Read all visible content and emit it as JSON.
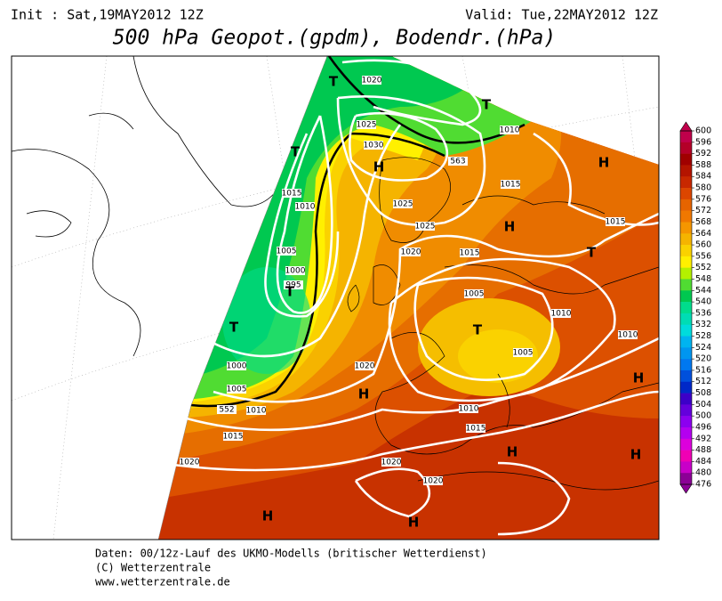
{
  "header": {
    "init": "Init : Sat,19MAY2012 12Z",
    "valid": "Valid: Tue,22MAY2012 12Z",
    "title": "500 hPa Geopot.(gpdm), Bodendr.(hPa)"
  },
  "map": {
    "isobar_labels": [
      "1020",
      "1025",
      "1030",
      "1010",
      "563",
      "1015",
      "1010",
      "1005",
      "1000",
      "995",
      "1025",
      "1025",
      "1015",
      "1015",
      "1020",
      "1015",
      "1005",
      "1010",
      "1010",
      "1005",
      "1020",
      "1000",
      "1005",
      "1010",
      "552",
      "1015",
      "1010",
      "1015",
      "1020",
      "1020",
      "1020"
    ],
    "pressure_centers": [
      "T",
      "T",
      "T",
      "H",
      "H",
      "H",
      "T",
      "T",
      "T",
      "T",
      "H",
      "H",
      "H",
      "H",
      "H",
      "H"
    ]
  },
  "colorbar": {
    "ticks": [
      600,
      596,
      592,
      588,
      584,
      580,
      576,
      572,
      568,
      564,
      560,
      556,
      552,
      548,
      544,
      540,
      536,
      532,
      528,
      524,
      520,
      516,
      512,
      508,
      504,
      500,
      496,
      492,
      488,
      484,
      480,
      476
    ],
    "colors": [
      "#c0004b",
      "#b40028",
      "#a00000",
      "#b41400",
      "#c82800",
      "#dc4600",
      "#e66400",
      "#f07800",
      "#f59600",
      "#f5b400",
      "#fad200",
      "#fff000",
      "#b4f000",
      "#50dc32",
      "#00c850",
      "#00dc8c",
      "#00dcb4",
      "#00dcdc",
      "#00b4f0",
      "#0096f0",
      "#0078f0",
      "#0050dc",
      "#0028c8",
      "#3c00c8",
      "#6400dc",
      "#8c00f0",
      "#b400f0",
      "#dc00dc",
      "#f000b4",
      "#c800c8",
      "#8c0096"
    ]
  },
  "footer": {
    "line1": "Daten: 00/12z-Lauf des UKMO-Modells (britischer Wetterdienst)",
    "line2": "(C) Wetterzentrale",
    "line3": "www.wetterzentrale.de"
  }
}
